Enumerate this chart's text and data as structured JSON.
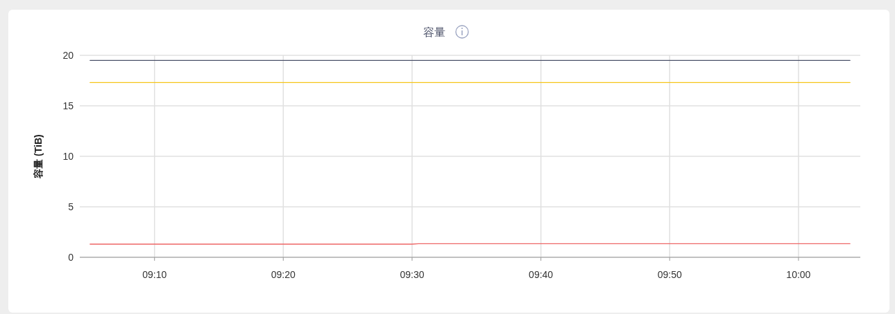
{
  "chart_data": {
    "type": "line",
    "title": "容量",
    "ylabel": "容量 (TiB)",
    "xlim": [
      9.07,
      10.08
    ],
    "xticks": [
      {
        "value": 9.1667,
        "label": "09:10"
      },
      {
        "value": 9.3333,
        "label": "09:20"
      },
      {
        "value": 9.5,
        "label": "09:30"
      },
      {
        "value": 9.6667,
        "label": "09:40"
      },
      {
        "value": 9.8333,
        "label": "09:50"
      },
      {
        "value": 10,
        "label": "10:00"
      }
    ],
    "ylim": [
      0,
      20
    ],
    "yticks": [
      0,
      5,
      10,
      15,
      20
    ],
    "grid": true,
    "marker": "none",
    "line_style": "solid",
    "series": [
      {
        "color": "#4a5068",
        "x": [
          9.0833,
          10.0667
        ],
        "values": [
          19.5,
          19.5
        ]
      },
      {
        "color": "#f5c518",
        "x": [
          9.0833,
          10.0667
        ],
        "values": [
          17.3,
          17.3
        ]
      },
      {
        "color": "#ee6666",
        "x": [
          9.0833,
          9.5,
          9.5083,
          10.0667
        ],
        "values": [
          1.3,
          1.3,
          1.35,
          1.35
        ]
      }
    ]
  }
}
